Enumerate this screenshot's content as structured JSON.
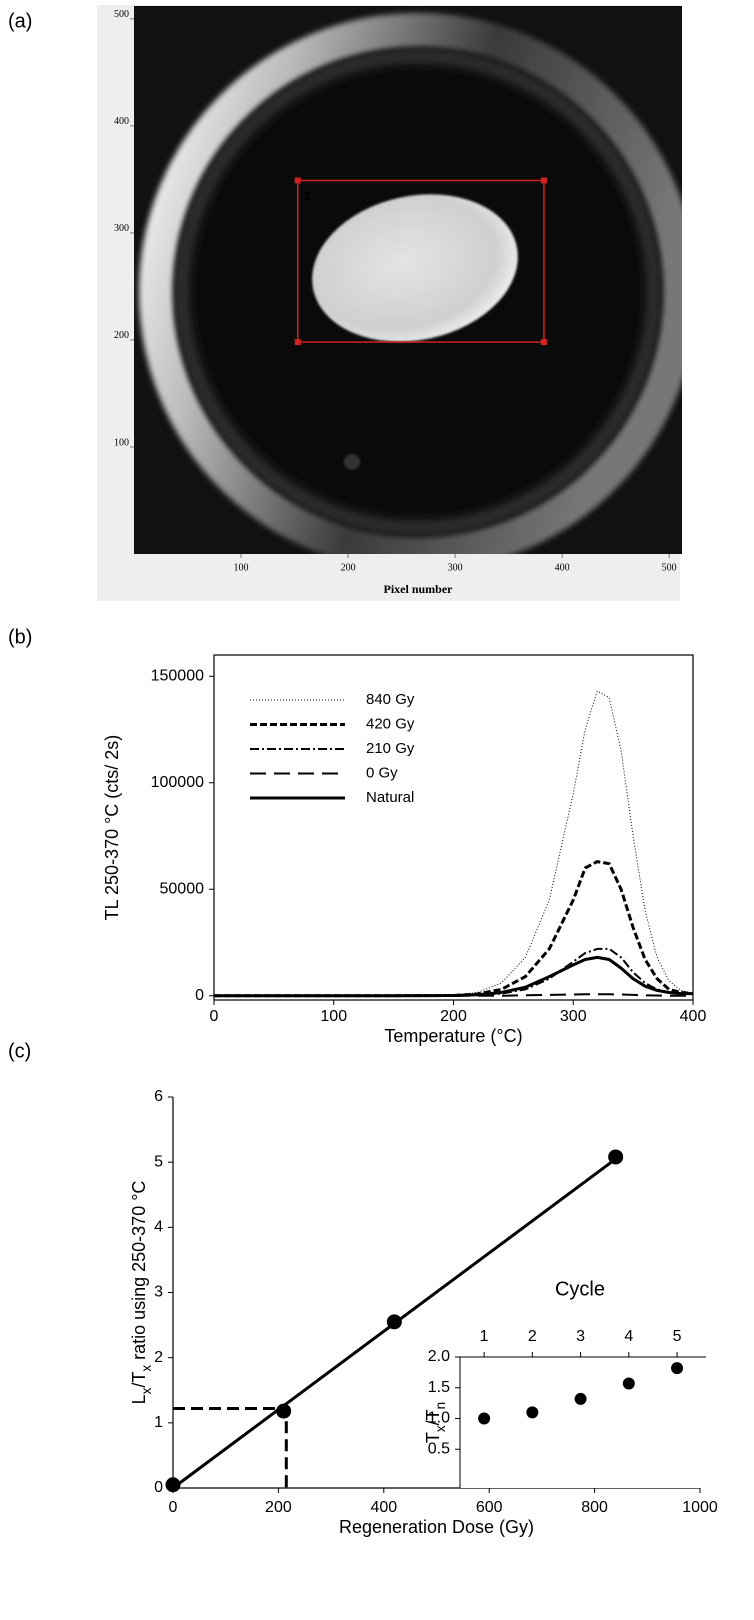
{
  "chart_data": [
    {
      "type": "image",
      "label": "(a)",
      "xlabel": "Pixel number",
      "xlim": [
        0,
        512
      ],
      "ylim": [
        0,
        512
      ],
      "xticks": [
        100,
        200,
        300,
        400,
        500
      ],
      "yticks": [
        100,
        200,
        300,
        400,
        500
      ],
      "roi": {
        "label": "1",
        "x": [
          153,
          383
        ],
        "y": [
          198,
          349
        ],
        "color": "#d42020"
      }
    },
    {
      "type": "line",
      "label": "(b)",
      "xlabel": "Temperature (°C)",
      "ylabel": "TL 250-370 °C (cts/ 2s)",
      "xlim": [
        0,
        400
      ],
      "ylim": [
        -2000,
        160000
      ],
      "xticks": [
        0,
        100,
        200,
        300,
        400
      ],
      "yticks": [
        0,
        50000,
        100000,
        150000
      ],
      "x": [
        0,
        50,
        100,
        150,
        200,
        220,
        240,
        260,
        280,
        300,
        310,
        320,
        330,
        340,
        350,
        360,
        370,
        380,
        390,
        400
      ],
      "series": [
        {
          "name": "840 Gy",
          "color": "#000000",
          "style": "dotted",
          "linewidth": 1,
          "values": [
            0,
            0,
            0,
            0,
            200,
            1500,
            6000,
            18000,
            45000,
            95000,
            125000,
            143000,
            140000,
            115000,
            75000,
            40000,
            18000,
            7000,
            2500,
            1000
          ]
        },
        {
          "name": "420 Gy",
          "color": "#000000",
          "style": "dashed",
          "linewidth": 3,
          "values": [
            0,
            0,
            0,
            0,
            100,
            800,
            3000,
            9000,
            22000,
            45000,
            60000,
            63000,
            62000,
            50000,
            32000,
            17000,
            8000,
            3000,
            1500,
            1000
          ]
        },
        {
          "name": "210 Gy",
          "color": "#000000",
          "style": "dashdot",
          "linewidth": 2,
          "values": [
            0,
            0,
            0,
            0,
            50,
            300,
            1000,
            3000,
            8000,
            16000,
            20000,
            22000,
            22000,
            18000,
            11000,
            6000,
            3000,
            1500,
            1000,
            800
          ]
        },
        {
          "name": "0 Gy",
          "color": "#000000",
          "style": "longdash",
          "linewidth": 2,
          "values": [
            0,
            0,
            0,
            0,
            0,
            0,
            0,
            200,
            400,
            600,
            700,
            700,
            700,
            600,
            400,
            200,
            100,
            0,
            0,
            0
          ]
        },
        {
          "name": "Natural",
          "color": "#000000",
          "style": "solid",
          "linewidth": 3,
          "values": [
            0,
            0,
            0,
            0,
            100,
            500,
            1500,
            4000,
            9000,
            14500,
            17000,
            18000,
            17000,
            13000,
            8000,
            4500,
            2500,
            1500,
            1000,
            1000
          ]
        }
      ]
    },
    {
      "type": "scatter",
      "label": "(c)",
      "xlabel": "Regeneration Dose (Gy)",
      "ylabel": {
        "parts": [
          "L",
          "x",
          "/T",
          "x",
          " ratio using 250-370 °C"
        ],
        "sub": [
          false,
          true,
          false,
          true,
          false
        ]
      },
      "xlim": [
        0,
        1000
      ],
      "ylim": [
        0,
        6
      ],
      "xticks": [
        0,
        200,
        400,
        600,
        800,
        1000
      ],
      "yticks": [
        0,
        1,
        2,
        3,
        4,
        5,
        6
      ],
      "x": [
        0,
        210,
        420,
        840
      ],
      "values": [
        0.05,
        1.18,
        2.55,
        5.08
      ],
      "color": "#000000",
      "fit": {
        "x": [
          0,
          840
        ],
        "y": [
          0,
          5.05
        ]
      },
      "interpolation": {
        "x": [
          0,
          215,
          215
        ],
        "y": [
          1.22,
          1.22,
          0
        ]
      },
      "inset": {
        "type": "scatter",
        "xlabel": "Cycle",
        "ylabel": {
          "parts": [
            "T",
            "x",
            "/T",
            "n"
          ],
          "sub": [
            false,
            true,
            false,
            true
          ]
        },
        "xlim": [
          0.5,
          5.6
        ],
        "ylim": [
          -0.13,
          2.0
        ],
        "xticks": [
          1,
          2,
          3,
          4,
          5
        ],
        "yticks": [
          0.5,
          {
            "value": 1.0,
            "label": "1.0"
          },
          1.5,
          {
            "value": 2.0,
            "label": "2.0"
          }
        ],
        "x": [
          1,
          2,
          3,
          4,
          5
        ],
        "values": [
          1.0,
          1.1,
          1.32,
          1.57,
          1.82
        ],
        "color": "#000000"
      }
    }
  ]
}
